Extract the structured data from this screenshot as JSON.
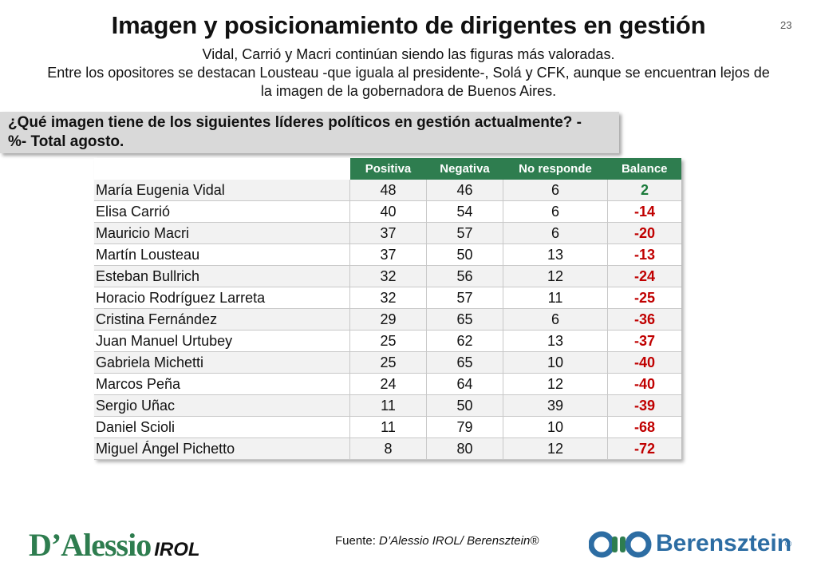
{
  "header": {
    "title": "Imagen y posicionamiento de dirigentes en gestión",
    "page_number": "23",
    "subtitle_line1": "Vidal, Carrió y Macri continúan siendo las figuras más valoradas.",
    "subtitle_line2": "Entre los opositores se destacan Lousteau -que iguala al presidente-, Solá y CFK, aunque se encuentran lejos de",
    "subtitle_line3": "la imagen de la gobernadora de Buenos Aires."
  },
  "question": "¿Qué imagen tiene de los siguientes líderes políticos en gestión actualmente? -%- Total agosto.",
  "chart_data": {
    "type": "table",
    "columns": [
      "Positiva",
      "Negativa",
      "No responde",
      "Balance"
    ],
    "rows": [
      {
        "name": "María Eugenia Vidal",
        "positiva": "48",
        "negativa": "46",
        "no_responde": "6",
        "balance": "2"
      },
      {
        "name": "Elisa Carrió",
        "positiva": "40",
        "negativa": "54",
        "no_responde": "6",
        "balance": "-14"
      },
      {
        "name": "Mauricio Macri",
        "positiva": "37",
        "negativa": "57",
        "no_responde": "6",
        "balance": "-20"
      },
      {
        "name": "Martín Lousteau",
        "positiva": "37",
        "negativa": "50",
        "no_responde": "13",
        "balance": "-13"
      },
      {
        "name": "Esteban Bullrich",
        "positiva": "32",
        "negativa": "56",
        "no_responde": "12",
        "balance": "-24"
      },
      {
        "name": "Horacio Rodríguez Larreta",
        "positiva": "32",
        "negativa": "57",
        "no_responde": "11",
        "balance": "-25"
      },
      {
        "name": "Cristina Fernández",
        "positiva": "29",
        "negativa": "65",
        "no_responde": "6",
        "balance": "-36"
      },
      {
        "name": "Juan Manuel Urtubey",
        "positiva": "25",
        "negativa": "62",
        "no_responde": "13",
        "balance": "-37"
      },
      {
        "name": "Gabriela Michetti",
        "positiva": "25",
        "negativa": "65",
        "no_responde": "10",
        "balance": "-40"
      },
      {
        "name": "Marcos Peña",
        "positiva": "24",
        "negativa": "64",
        "no_responde": "12",
        "balance": "-40"
      },
      {
        "name": "Sergio Uñac",
        "positiva": "11",
        "negativa": "50",
        "no_responde": "39",
        "balance": "-39"
      },
      {
        "name": "Daniel Scioli",
        "positiva": "11",
        "negativa": "79",
        "no_responde": "10",
        "balance": "-68"
      },
      {
        "name": "Miguel Ángel Pichetto",
        "positiva": "8",
        "negativa": "80",
        "no_responde": "12",
        "balance": "-72"
      }
    ]
  },
  "footer": {
    "logo_left_main": "D’Alessio",
    "logo_left_sub": "IROL",
    "source_label": "Fuente:",
    "source_text": "D’Alessio IROL/ Berensztein®",
    "logo_right_text": "Berensztein",
    "logo_right_reg": "®"
  },
  "colors": {
    "header_green": "#2e7d4f",
    "negative_red": "#c00000",
    "positive_green": "#1a7a3a",
    "brand_blue": "#2d6da3"
  }
}
